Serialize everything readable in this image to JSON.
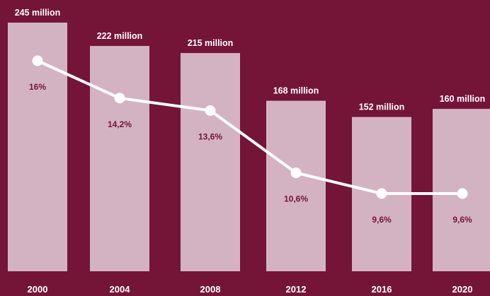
{
  "colors": {
    "background": "#741538",
    "bar": "#d3b3c2",
    "line": "#ffffff",
    "percent_text": "#741538",
    "label_text": "#ffffff"
  },
  "chart_data": {
    "type": "bar",
    "categories": [
      "2000",
      "2004",
      "2008",
      "2012",
      "2016",
      "2020"
    ],
    "series": [
      {
        "type": "bar",
        "values": [
          245,
          222,
          215,
          168,
          152,
          160
        ],
        "labels": [
          "245 million",
          "222 million",
          "215 million",
          "168 million",
          "152  million",
          "160 million"
        ]
      },
      {
        "type": "line",
        "values": [
          16,
          14.2,
          13.6,
          10.6,
          9.6,
          9.6
        ],
        "labels": [
          "16%",
          "14,2%",
          "13,6%",
          "10,6%",
          "9,6%",
          "9,6%"
        ]
      }
    ],
    "title": "",
    "xlabel": "",
    "ylabel": "",
    "grid": false,
    "legend": "none"
  }
}
